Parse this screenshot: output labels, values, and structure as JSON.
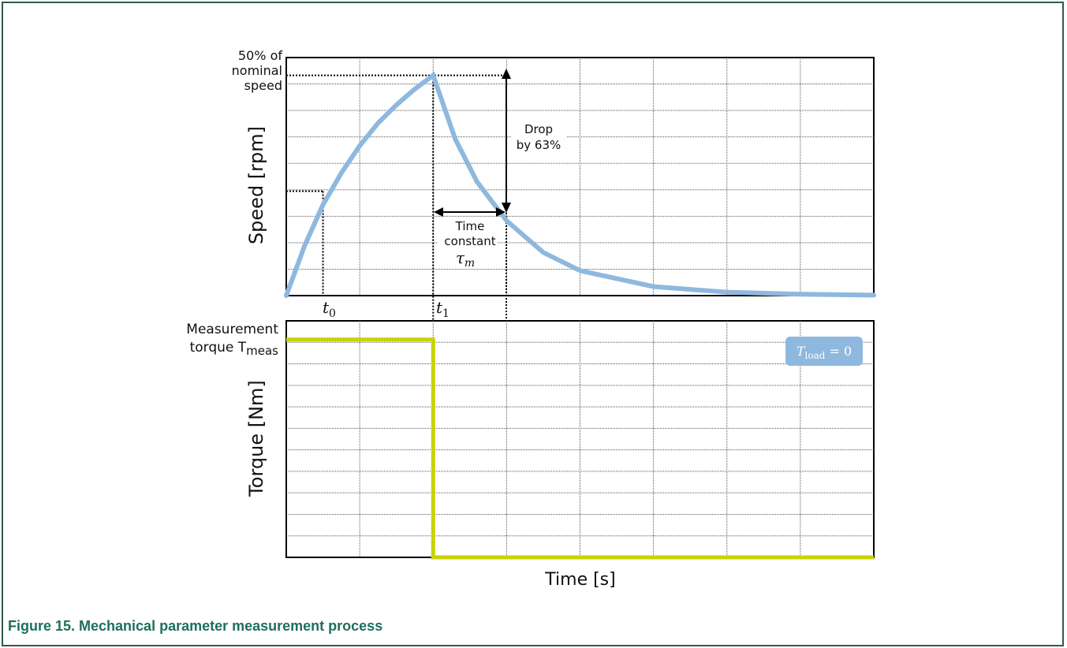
{
  "caption": "Figure 15. Mechanical parameter measurement process",
  "chart_data": [
    {
      "type": "line",
      "panel": "speed",
      "ylabel": "Speed [rpm]",
      "y_top_label": [
        "50% of",
        "nominal",
        "speed"
      ],
      "x_tick_labels": {
        "t0": "t",
        "t0_sub": "0",
        "t1": "t",
        "t1_sub": "1"
      },
      "annotations": {
        "drop": [
          "Drop",
          "by 63%"
        ],
        "time_constant": [
          "Time",
          "constant"
        ],
        "tau": "τ",
        "tau_sub": "m"
      },
      "grid": true,
      "color": "#8fb8de",
      "series": [
        {
          "x": [
            0,
            0.25,
            0.5,
            0.75,
            1.0,
            1.25,
            1.5,
            1.75,
            2.0,
            2.3,
            2.6,
            3.0,
            3.5,
            4.0,
            5.0,
            6.0,
            7.0,
            8.0
          ],
          "y": [
            0,
            0.22,
            0.4,
            0.54,
            0.66,
            0.76,
            0.84,
            0.91,
            0.97,
            0.69,
            0.5,
            0.33,
            0.19,
            0.11,
            0.04,
            0.015,
            0.006,
            0.002
          ]
        }
      ],
      "xlim": [
        0,
        8
      ],
      "ylim": [
        0,
        1
      ]
    },
    {
      "type": "line",
      "panel": "torque",
      "ylabel": "Torque [Nm]",
      "xlabel": "Time [s]",
      "y_top_label": [
        "Measurement",
        "torque T"
      ],
      "y_top_sub": "meas",
      "legend_box": {
        "T": "T",
        "sub": "load",
        "rest": " = 0"
      },
      "grid": true,
      "color": "#c8d400",
      "series": [
        {
          "x": [
            0,
            2.0,
            2.0,
            8.0
          ],
          "y": [
            0.9,
            0.9,
            0,
            0
          ]
        }
      ],
      "xlim": [
        0,
        8
      ],
      "ylim": [
        0,
        1
      ]
    }
  ]
}
